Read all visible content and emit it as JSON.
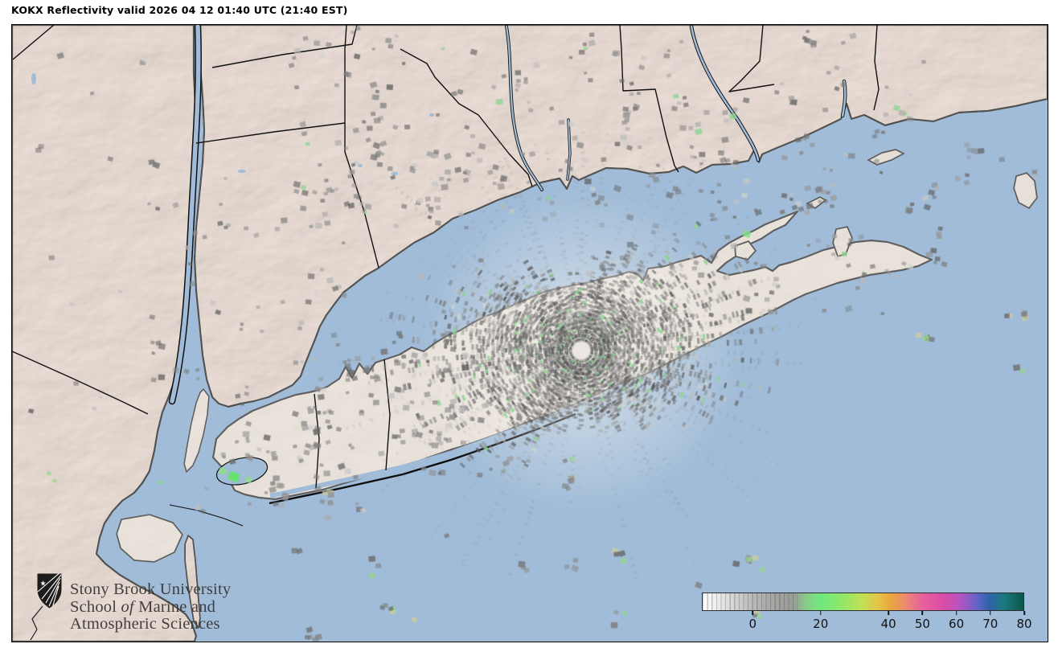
{
  "title": "KOKX Reflectivity valid 2026 04 12 01:40 UTC (21:40 EST)",
  "branding": {
    "org_line1": "Stony Brook University",
    "org_line2_pre": "School ",
    "org_line2_italic": "of",
    "org_line2_post": " Marine and",
    "org_line3": "Atmospheric Sciences"
  },
  "colorbar": {
    "min_dbz": -15,
    "max_dbz": 80,
    "stripe_end_dbz": 13,
    "tick_values": [
      0,
      20,
      40,
      50,
      60,
      70,
      80
    ],
    "tick_labels": [
      "0",
      "20",
      "40",
      "50",
      "60",
      "70",
      "80"
    ],
    "gradient_stops": [
      {
        "at": -15,
        "color": "#ffffff"
      },
      {
        "at": -8,
        "color": "#e0e0df"
      },
      {
        "at": -2,
        "color": "#c2c2c0"
      },
      {
        "at": 3,
        "color": "#aeaeac"
      },
      {
        "at": 8,
        "color": "#a0a09e"
      },
      {
        "at": 12,
        "color": "#9a9e96"
      },
      {
        "at": 16,
        "color": "#87cf85"
      },
      {
        "at": 20,
        "color": "#6fe87e"
      },
      {
        "at": 26,
        "color": "#8fe76a"
      },
      {
        "at": 32,
        "color": "#bfe156"
      },
      {
        "at": 37,
        "color": "#e3c447"
      },
      {
        "at": 41,
        "color": "#e9a440"
      },
      {
        "at": 45,
        "color": "#ec8a6e"
      },
      {
        "at": 50,
        "color": "#e7619c"
      },
      {
        "at": 56,
        "color": "#dd4da6"
      },
      {
        "at": 61,
        "color": "#b753be"
      },
      {
        "at": 64,
        "color": "#8a5cc8"
      },
      {
        "at": 67,
        "color": "#5565c2"
      },
      {
        "at": 70,
        "color": "#2f62a9"
      },
      {
        "at": 74,
        "color": "#1d7a80"
      },
      {
        "at": 80,
        "color": "#0a564b"
      }
    ]
  },
  "colors": {
    "water": "#a0bcd8",
    "land": "#e7d9d0",
    "land_light": "#ebe3da",
    "coastline": "#0d0d0d",
    "clutter_gray": "#787878",
    "clutter_green": "#8fd492",
    "radar_hole": "#ece7e2",
    "shield": "#1d1c1a",
    "logo_text": "#3a3632",
    "title_text": "#000000"
  }
}
